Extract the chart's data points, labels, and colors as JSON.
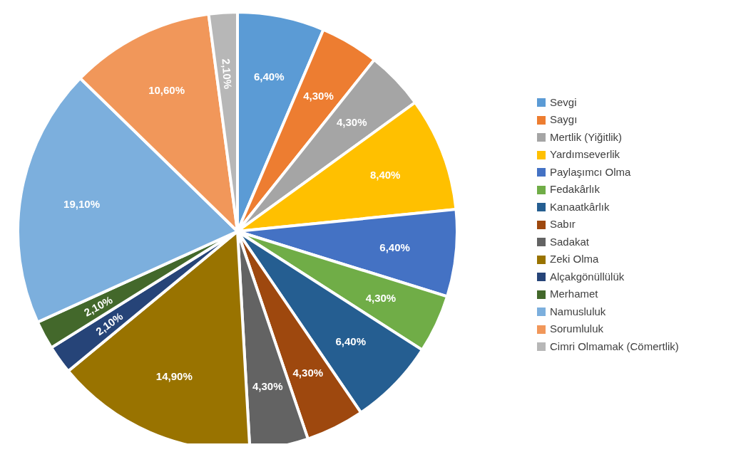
{
  "chart_data": {
    "type": "pie",
    "categories": [
      "Sevgi",
      "Saygı",
      "Mertlik (Yiğitlik)",
      "Yardımseverlik",
      "Paylaşımcı Olma",
      "Fedakârlık",
      "Kanaatkârlık",
      "Sabır",
      "Sadakat",
      "Zeki Olma",
      "Alçakgönüllülük",
      "Merhamet",
      "Namusluluk",
      "Sorumluluk",
      "Cimri Olmamak (Cömertlik)"
    ],
    "values": [
      6.4,
      4.3,
      4.3,
      8.4,
      6.4,
      4.3,
      6.4,
      4.3,
      4.3,
      14.9,
      2.1,
      2.1,
      19.1,
      10.6,
      2.1
    ],
    "value_labels": [
      "6,40%",
      "4,30%",
      "4,30%",
      "8,40%",
      "6,40%",
      "4,30%",
      "6,40%",
      "4,30%",
      "4,30%",
      "14,90%",
      "2,10%",
      "2,10%",
      "19,10%",
      "10,60%",
      "2,10%"
    ],
    "colors": [
      "#5b9bd5",
      "#ed7d31",
      "#a5a5a5",
      "#ffc000",
      "#4472c4",
      "#70ad47",
      "#255e91",
      "#9e480e",
      "#636363",
      "#997300",
      "#264478",
      "#43682b",
      "#7cafdd",
      "#f1975a",
      "#b7b7b7"
    ],
    "legend": "right"
  }
}
